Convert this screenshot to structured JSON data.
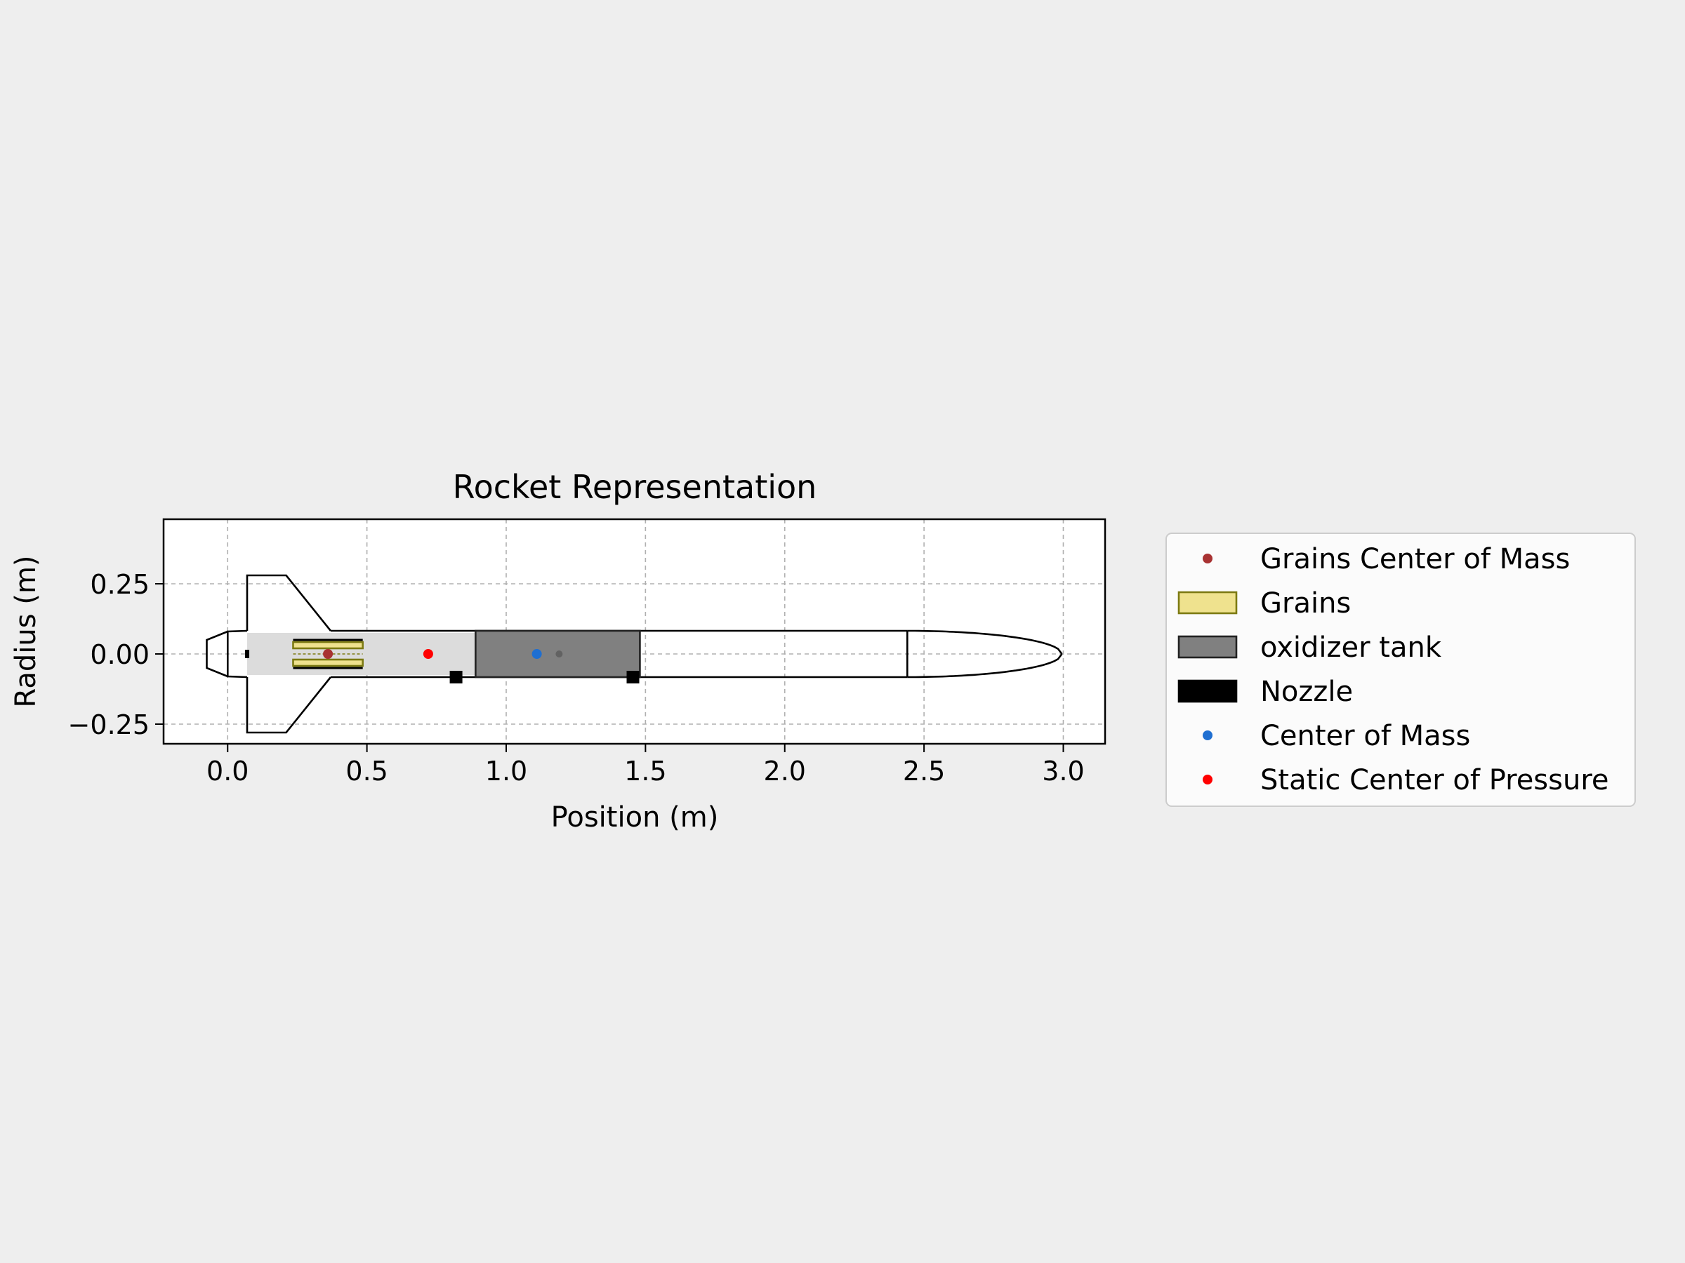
{
  "chart_data": {
    "type": "scatter",
    "title": "Rocket Representation",
    "xlabel": "Position (m)",
    "ylabel": "Radius (m)",
    "xlim": [
      -0.23,
      3.15
    ],
    "ylim": [
      -0.32,
      0.48
    ],
    "xticks": [
      0.0,
      0.5,
      1.0,
      1.5,
      2.0,
      2.5,
      3.0
    ],
    "xtick_labels": [
      "0.0",
      "0.5",
      "1.0",
      "1.5",
      "2.0",
      "2.5",
      "3.0"
    ],
    "yticks": [
      0.25,
      0.0,
      -0.25
    ],
    "ytick_labels": [
      "0.25",
      "0.00",
      "−0.25"
    ],
    "grid": true,
    "legend_position": "outside-right",
    "components": {
      "nose_cone": {
        "start": 2.44,
        "tip": 2.995,
        "radius": 0.0825
      },
      "body_tube": {
        "start": 0.37,
        "end": 2.44,
        "radius": 0.0825
      },
      "fins": {
        "root_start": 0.37,
        "root_end": 0.07,
        "tip_start": 0.21,
        "tip_end": 0.07,
        "span_radius": 0.28
      },
      "tail": {
        "start": 0.0,
        "end": -0.075,
        "top_radius": 0.08,
        "bottom_radius": 0.05
      },
      "motor_case": {
        "start": 0.07,
        "end": 0.89,
        "radius": 0.075
      },
      "grains": {
        "start": 0.235,
        "end": 0.485,
        "outer_radius": 0.05,
        "inner_radius": 0.02
      },
      "oxidizer_tank": {
        "start": 0.89,
        "end": 1.48,
        "radius": 0.0825
      },
      "rail_buttons": [
        0.82,
        1.455
      ],
      "tank_center_of_mass": 1.19
    },
    "points": [
      {
        "name": "Grains Center of Mass",
        "x": 0.36,
        "y": 0.0,
        "color": "#a83232"
      },
      {
        "name": "Center of Mass",
        "x": 1.11,
        "y": 0.0,
        "color": "#1f6fd1"
      },
      {
        "name": "Static Center of Pressure",
        "x": 0.72,
        "y": 0.0,
        "color": "#ff0000"
      }
    ],
    "legend": [
      {
        "label": "Grains Center of Mass",
        "kind": "dot",
        "color": "#a83232"
      },
      {
        "label": "Grains",
        "kind": "patch",
        "color": "#efe28e",
        "edge": "#7c7a12"
      },
      {
        "label": "oxidizer tank",
        "kind": "patch",
        "color": "#808080",
        "edge": "#222222"
      },
      {
        "label": "Nozzle",
        "kind": "patch",
        "color": "#000000",
        "edge": "#000000"
      },
      {
        "label": "Center of Mass",
        "kind": "dot",
        "color": "#1f6fd1"
      },
      {
        "label": "Static Center of Pressure",
        "kind": "dot",
        "color": "#ff0000"
      }
    ]
  }
}
